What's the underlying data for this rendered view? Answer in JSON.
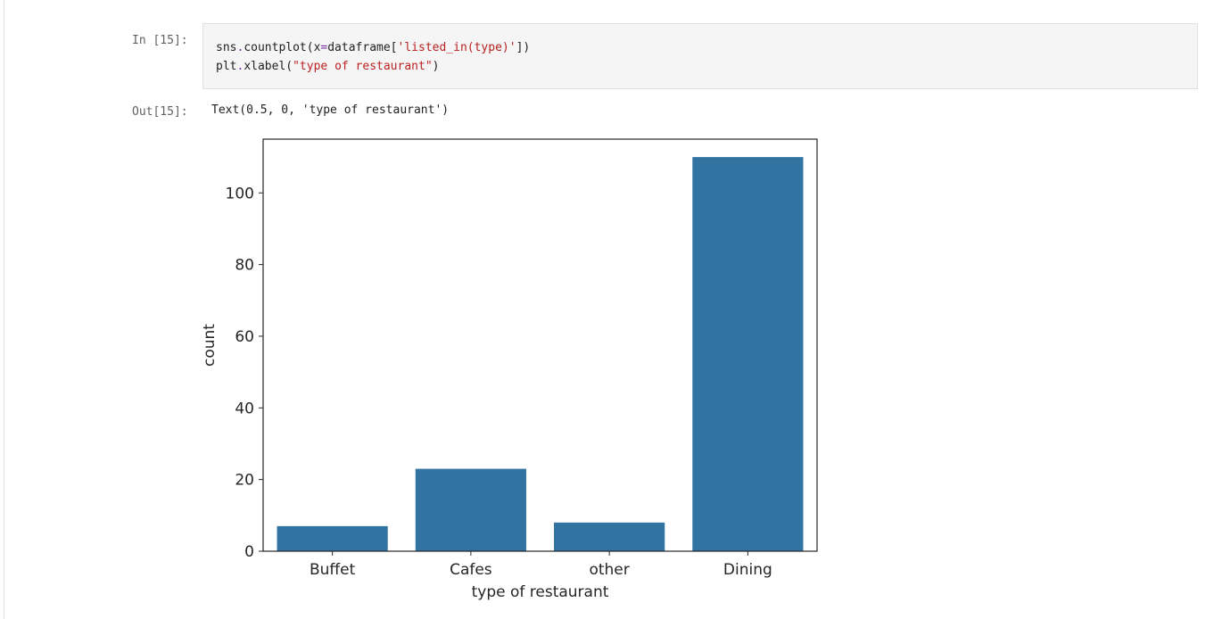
{
  "input_cell": {
    "prompt": "In [15]:",
    "code_line_1": {
      "a": "sns",
      "dot1": ".",
      "b": "countplot(x",
      "eq": "=",
      "c": "dataframe[",
      "str": "'listed_in(type)'",
      "d": "])"
    },
    "code_line_2": {
      "a": "plt",
      "dot1": ".",
      "b": "xlabel(",
      "str": "\"type of restaurant\"",
      "c": ")"
    }
  },
  "output_cell": {
    "prompt": "Out[15]:",
    "text": "Text(0.5, 0, 'type of restaurant')"
  },
  "chart_data": {
    "type": "bar",
    "categories": [
      "Buffet",
      "Cafes",
      "other",
      "Dining"
    ],
    "values": [
      7,
      23,
      8,
      110
    ],
    "xlabel": "type of restaurant",
    "ylabel": "count",
    "ylim": [
      0,
      115
    ],
    "yticks": [
      0,
      20,
      40,
      60,
      80,
      100
    ],
    "bar_color": "#3274a1",
    "grid": false
  }
}
